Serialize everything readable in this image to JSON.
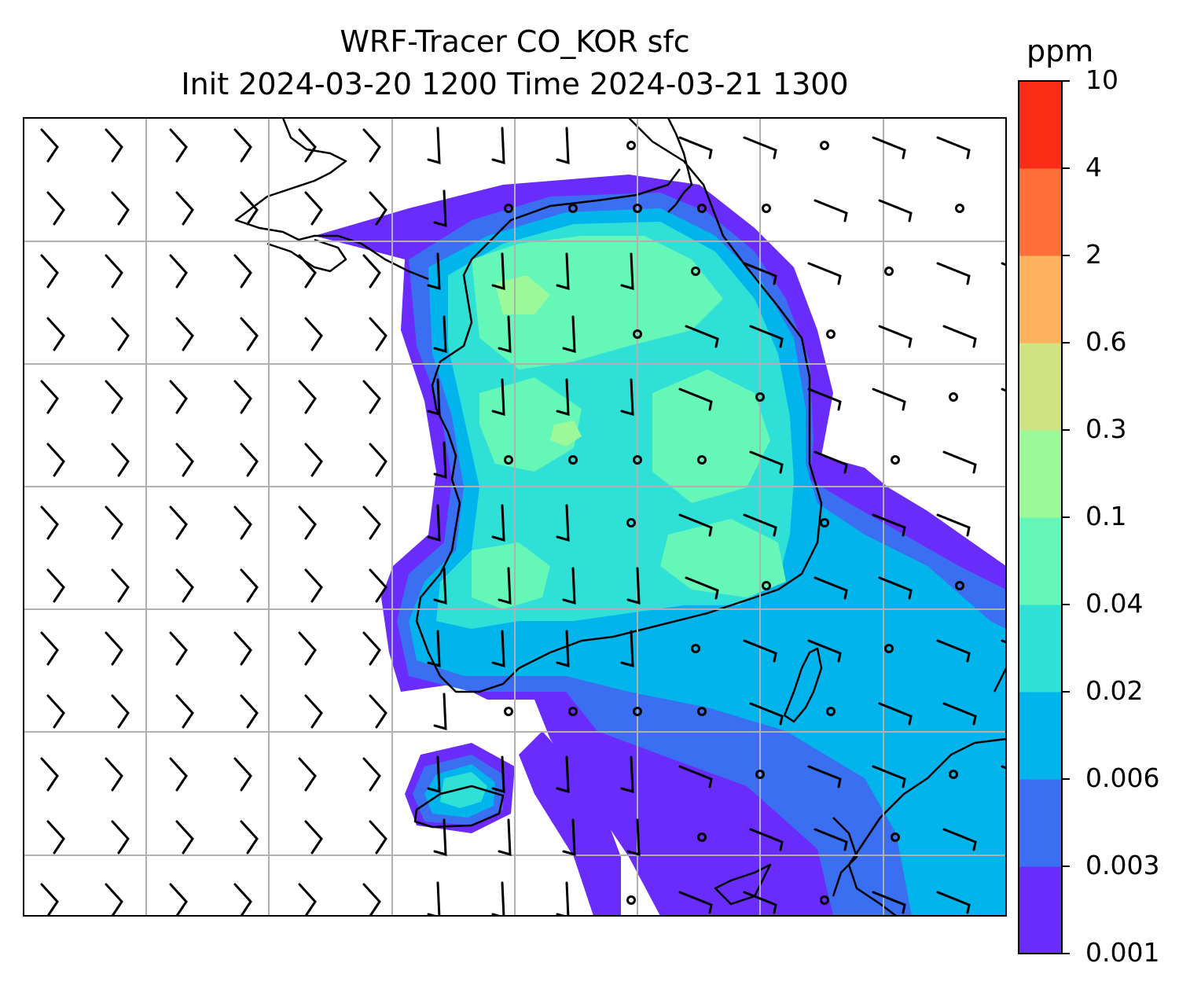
{
  "title": {
    "line1": "WRF-Tracer CO_KOR sfc",
    "line2": "Init 2024-03-20 1200 Time 2024-03-21 1300"
  },
  "colorbar": {
    "unit": "ppm",
    "levels": [
      "0.001",
      "0.003",
      "0.006",
      "0.02",
      "0.04",
      "0.1",
      "0.3",
      "0.6",
      "2",
      "4",
      "10"
    ],
    "colors": [
      "#6a2cfb",
      "#3b6ff2",
      "#02b4ec",
      "#2ee0d6",
      "#64f7b8",
      "#9cf99a",
      "#d1e484",
      "#ffb25e",
      "#ff6f39",
      "#fb2c15"
    ]
  },
  "map": {
    "background": "#ffffff",
    "gridline_color": "#b0b0b0",
    "coastline_color": "#000000",
    "wind_barbs": "wind barbs and calm-wind circles overlaid in black"
  }
}
